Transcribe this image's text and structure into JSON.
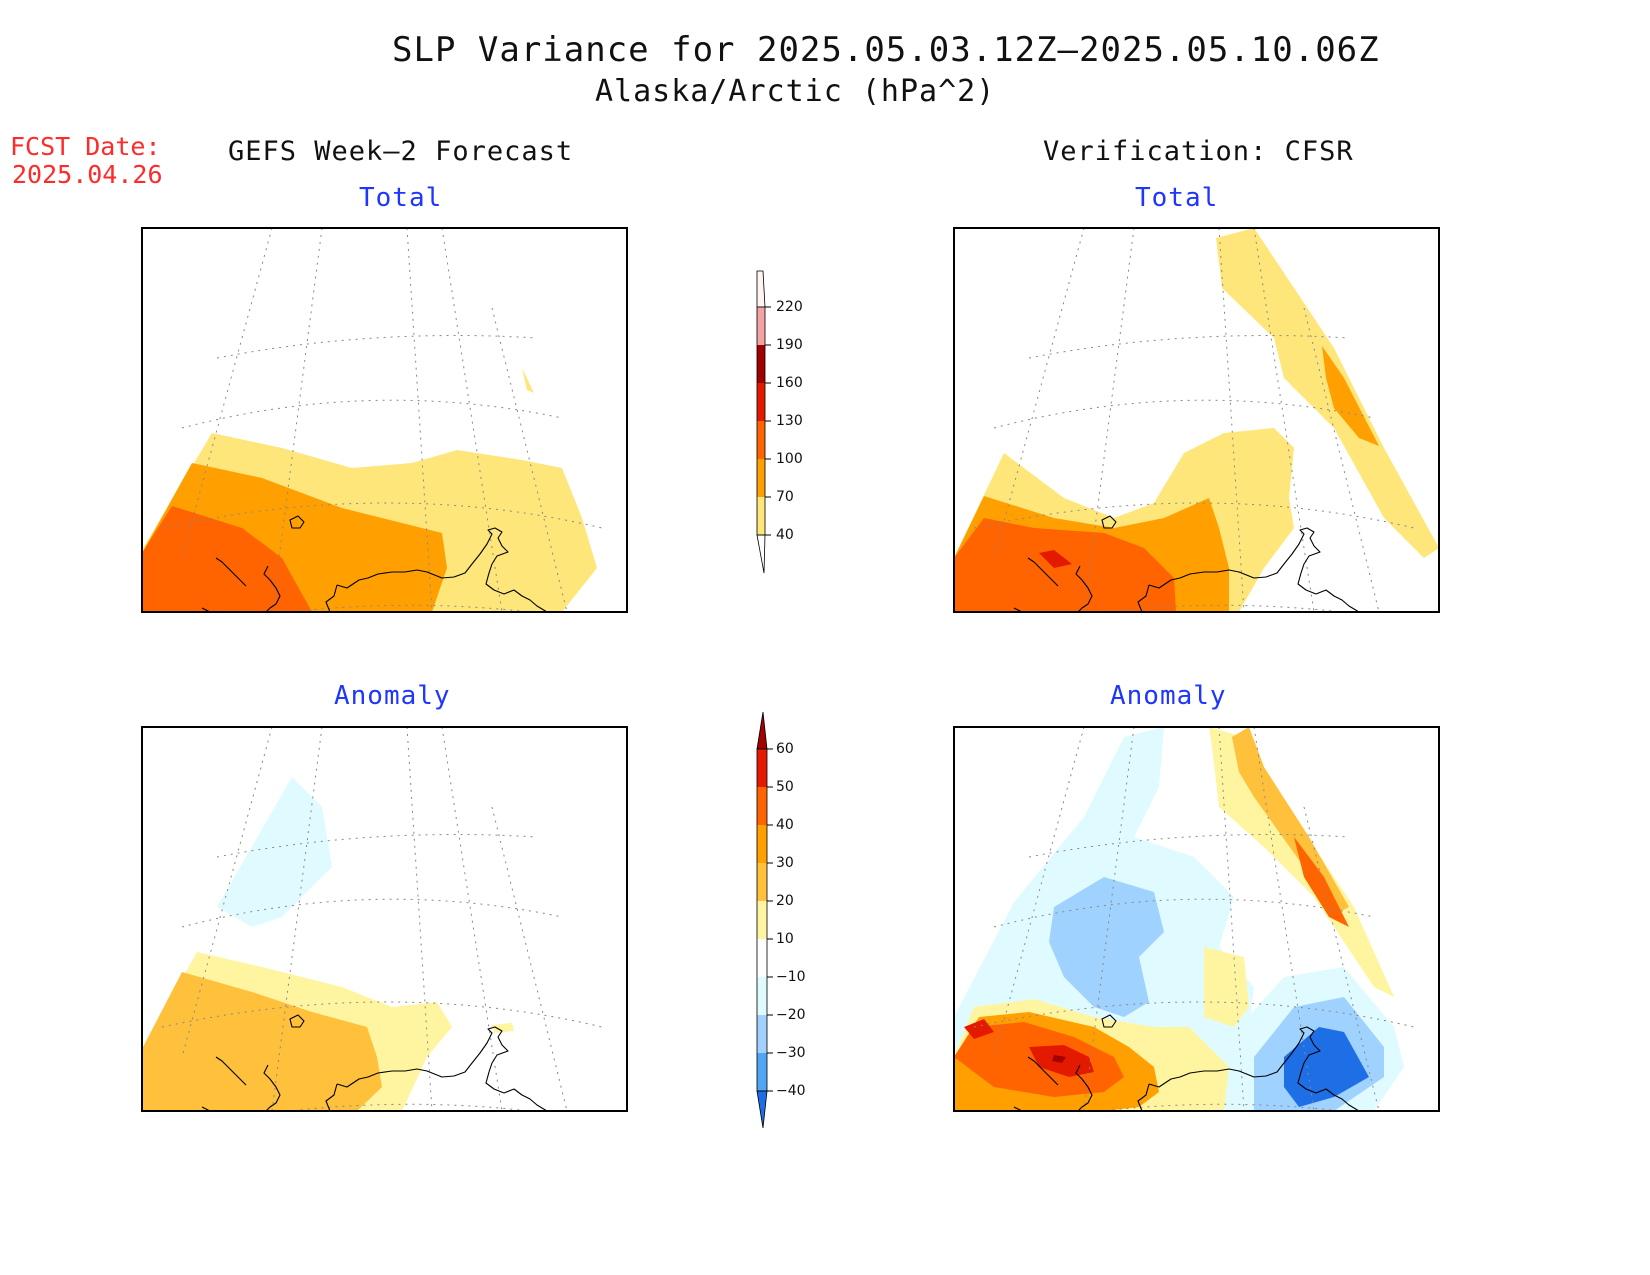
{
  "header": {
    "title": "SLP Variance for 2025.05.03.12Z–2025.05.10.06Z",
    "subtitle": "Alaska/Arctic (hPa^2)"
  },
  "fcst": {
    "label": "FCST Date:",
    "date": "2025.04.26"
  },
  "columns": {
    "left": "GEFS Week–2 Forecast",
    "right": "Verification: CFSR"
  },
  "panels": {
    "top_left": "Total",
    "top_right": "Total",
    "bottom_left": "Anomaly",
    "bottom_right": "Anomaly"
  },
  "colorbars": {
    "total": {
      "labels": [
        "220",
        "190",
        "160",
        "130",
        "100",
        "70",
        "40"
      ],
      "colors": [
        "#fde0dc",
        "#f4a3a3",
        "#a10000",
        "#e41a00",
        "#ff6400",
        "#ffa000",
        "#ffe67a"
      ]
    },
    "anomaly": {
      "labels": [
        "60",
        "50",
        "40",
        "30",
        "20",
        "10",
        "−10",
        "−20",
        "−30",
        "−40"
      ],
      "colors": [
        "#a50000",
        "#e41a00",
        "#ff6400",
        "#ffa000",
        "#ffc03c",
        "#fff5a0",
        "#ffffff",
        "#e0fbff",
        "#a0d2ff",
        "#50a5f5",
        "#1e6ee6"
      ]
    }
  }
}
